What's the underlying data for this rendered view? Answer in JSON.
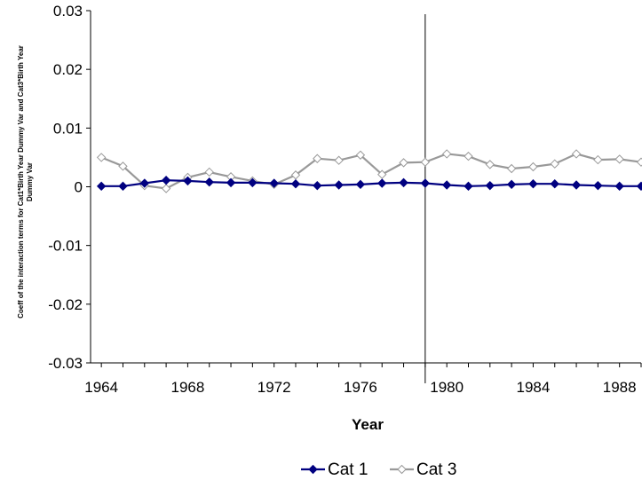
{
  "chart_data": {
    "type": "line",
    "title": "",
    "xlabel": "Year",
    "ylabel_lines": [
      "Coeff of the interaction terms for Cat1*Birth Year Dummy Var and Cat3*Birth Year",
      "Dummy Var"
    ],
    "xlim": [
      1963.5,
      1989.0
    ],
    "ylim": [
      -0.03,
      0.03
    ],
    "x_ticks": [
      1964,
      1968,
      1972,
      1976,
      1980,
      1984,
      1988
    ],
    "x_tick_labels": [
      "1964",
      "1968",
      "1972",
      "1976",
      "1980",
      "1984",
      "1988"
    ],
    "y_ticks": [
      0.03,
      0.02,
      0.01,
      0,
      -0.01,
      -0.02,
      -0.03
    ],
    "y_tick_labels": [
      "0.03",
      "0.02",
      "0.01",
      "0",
      "-0.01",
      "-0.02",
      "-0.03"
    ],
    "vertical_line_x": 1979,
    "grid": false,
    "legend_position": "bottom",
    "x": [
      1964,
      1965,
      1966,
      1967,
      1968,
      1969,
      1970,
      1971,
      1972,
      1973,
      1974,
      1975,
      1976,
      1977,
      1978,
      1979,
      1980,
      1981,
      1982,
      1983,
      1984,
      1985,
      1986,
      1987,
      1988,
      1989
    ],
    "series": [
      {
        "name": "Cat 1",
        "color": "#000080",
        "marker": "diamond-filled",
        "values": [
          0.0001,
          0.0001,
          0.0006,
          0.0011,
          0.001,
          0.0008,
          0.0007,
          0.0007,
          0.0006,
          0.0005,
          0.0002,
          0.0003,
          0.0004,
          0.0006,
          0.0007,
          0.0006,
          0.0003,
          0.0001,
          0.0002,
          0.0004,
          0.0005,
          0.0005,
          0.0003,
          0.0002,
          0.0001,
          0.0001
        ]
      },
      {
        "name": "Cat 3",
        "color": "#999999",
        "marker": "diamond-open",
        "values": [
          0.005,
          0.0035,
          0.0002,
          -0.0003,
          0.0016,
          0.0025,
          0.0017,
          0.001,
          0.0004,
          0.002,
          0.0048,
          0.0045,
          0.0054,
          0.0021,
          0.0041,
          0.0042,
          0.0056,
          0.0052,
          0.0038,
          0.0031,
          0.0034,
          0.0039,
          0.0056,
          0.0046,
          0.0047,
          0.0042
        ]
      }
    ]
  }
}
